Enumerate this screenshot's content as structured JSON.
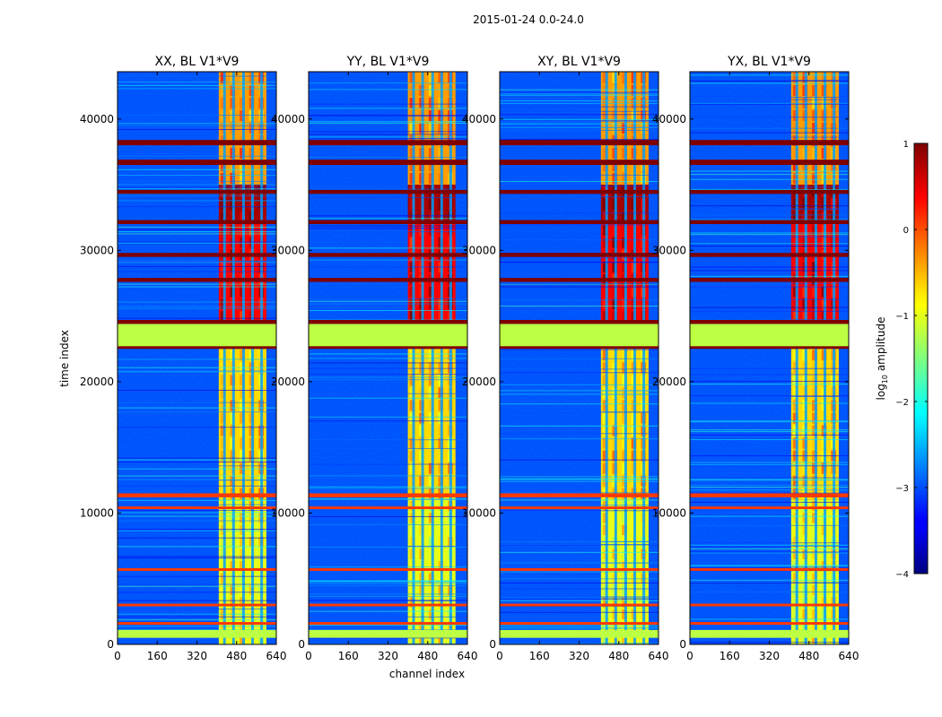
{
  "chart_data": {
    "type": "heatmap",
    "title": "2015-01-24 0.0-24.0",
    "xlabel": "channel index",
    "ylabel": "time index",
    "xlim": [
      0,
      640
    ],
    "ylim": [
      0,
      43600
    ],
    "x_ticks": [
      0,
      160,
      320,
      480,
      640
    ],
    "y_ticks": [
      0,
      10000,
      20000,
      30000,
      40000
    ],
    "panels": [
      {
        "title": "XX, BL V1*V9",
        "band_start": 408,
        "band_end": 600
      },
      {
        "title": "YY, BL V1*V9",
        "band_start": 400,
        "band_end": 592
      },
      {
        "title": "XY, BL V1*V9",
        "band_start": 408,
        "band_end": 600
      },
      {
        "title": "YX, BL V1*V9",
        "band_start": 408,
        "band_end": 600
      }
    ],
    "colorbar": {
      "label": "log",
      "label_sub": "10",
      "label_tail": " amplitude",
      "min": -4,
      "max": 1,
      "ticks": [
        -4,
        -3,
        -2,
        -1,
        0,
        1
      ],
      "tick_labels": [
        "−4",
        "−3",
        "−2",
        "−1",
        "0",
        "1"
      ],
      "colormap": "jet"
    },
    "flagged_rows": [
      {
        "start": 22600,
        "end": 24400,
        "level": -1.2
      },
      {
        "start": 500,
        "end": 1100,
        "level": -1.2
      },
      {
        "start": 38000,
        "end": 38400,
        "level": 1.0
      },
      {
        "start": 36500,
        "end": 36900,
        "level": 1.0
      },
      {
        "start": 34300,
        "end": 34600,
        "level": 1.0
      },
      {
        "start": 32000,
        "end": 32300,
        "level": 1.0
      },
      {
        "start": 29500,
        "end": 29800,
        "level": 1.0
      },
      {
        "start": 27600,
        "end": 27900,
        "level": 1.0
      },
      {
        "start": 24400,
        "end": 24700,
        "level": 1.0
      },
      {
        "start": 22500,
        "end": 22700,
        "level": 1.0
      },
      {
        "start": 11200,
        "end": 11500,
        "level": 0.1
      },
      {
        "start": 10300,
        "end": 10500,
        "level": 0.1
      },
      {
        "start": 5600,
        "end": 5800,
        "level": 0.1
      },
      {
        "start": 2900,
        "end": 3100,
        "level": 0.1
      },
      {
        "start": 1500,
        "end": 1700,
        "level": 0.1
      }
    ],
    "amplitude_segments": [
      {
        "start": 0,
        "end": 11000,
        "level": -1.0
      },
      {
        "start": 11000,
        "end": 22500,
        "level": -0.7
      },
      {
        "start": 24500,
        "end": 32000,
        "level": 0.4
      },
      {
        "start": 32000,
        "end": 35000,
        "level": 0.8
      },
      {
        "start": 35000,
        "end": 43600,
        "level": -0.4
      }
    ]
  }
}
